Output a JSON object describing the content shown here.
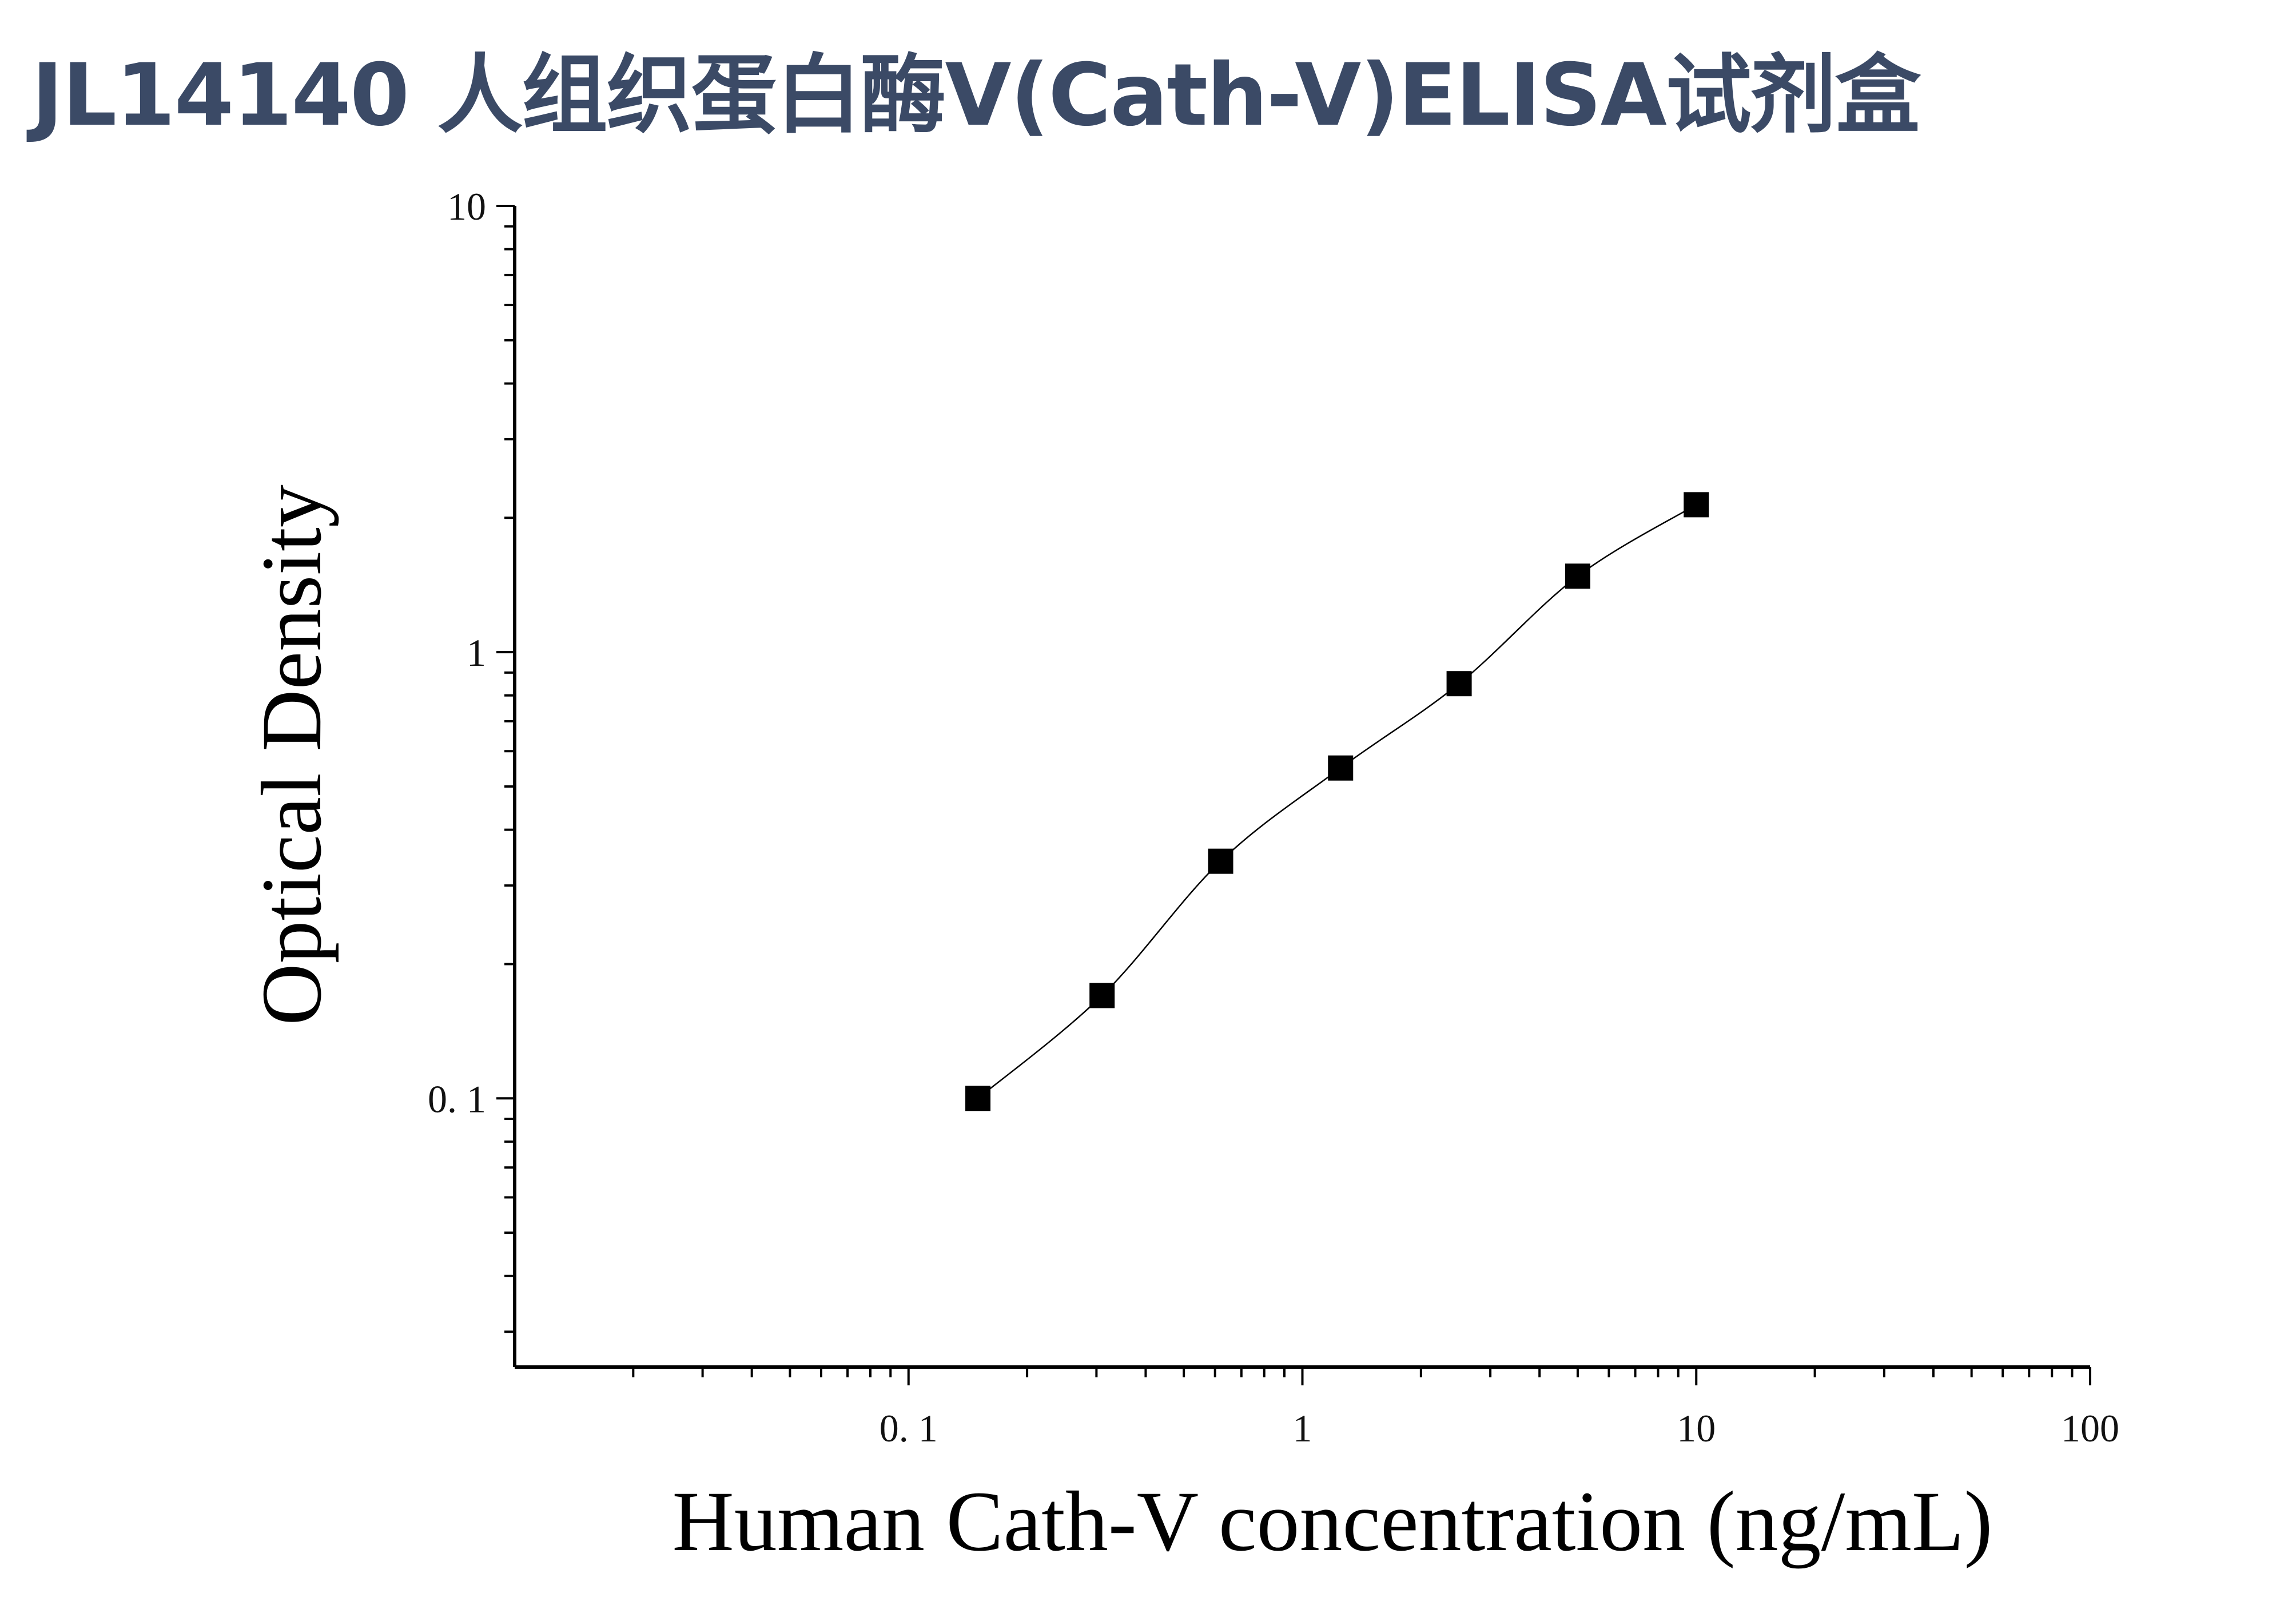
{
  "title": "JL14140 人组织蛋白酶V(Cath-V)ELISA试剂盒",
  "chart_data": {
    "type": "scatter",
    "title": "JL14140 人组织蛋白酶V(Cath-V)ELISA试剂盒",
    "xlabel": "Human Cath-V concentration (ng/mL)",
    "ylabel": "Optical Density",
    "xscale": "log",
    "yscale": "log",
    "xlim": [
      0.01,
      100
    ],
    "ylim": [
      0.025,
      10
    ],
    "x_ticks": [
      0.1,
      1,
      10,
      100
    ],
    "x_tick_labels": [
      "0. 1",
      "1",
      "10",
      "100"
    ],
    "y_ticks": [
      0.1,
      1,
      10
    ],
    "y_tick_labels": [
      "0. 1",
      "1",
      "10"
    ],
    "grid": false,
    "series": [
      {
        "marker": "square",
        "color": "#000000",
        "x": [
          0.15,
          0.31,
          0.62,
          1.25,
          2.5,
          5,
          10
        ],
        "y": [
          0.1,
          0.17,
          0.34,
          0.55,
          0.85,
          1.48,
          2.14
        ]
      }
    ],
    "fit_curve": true
  }
}
